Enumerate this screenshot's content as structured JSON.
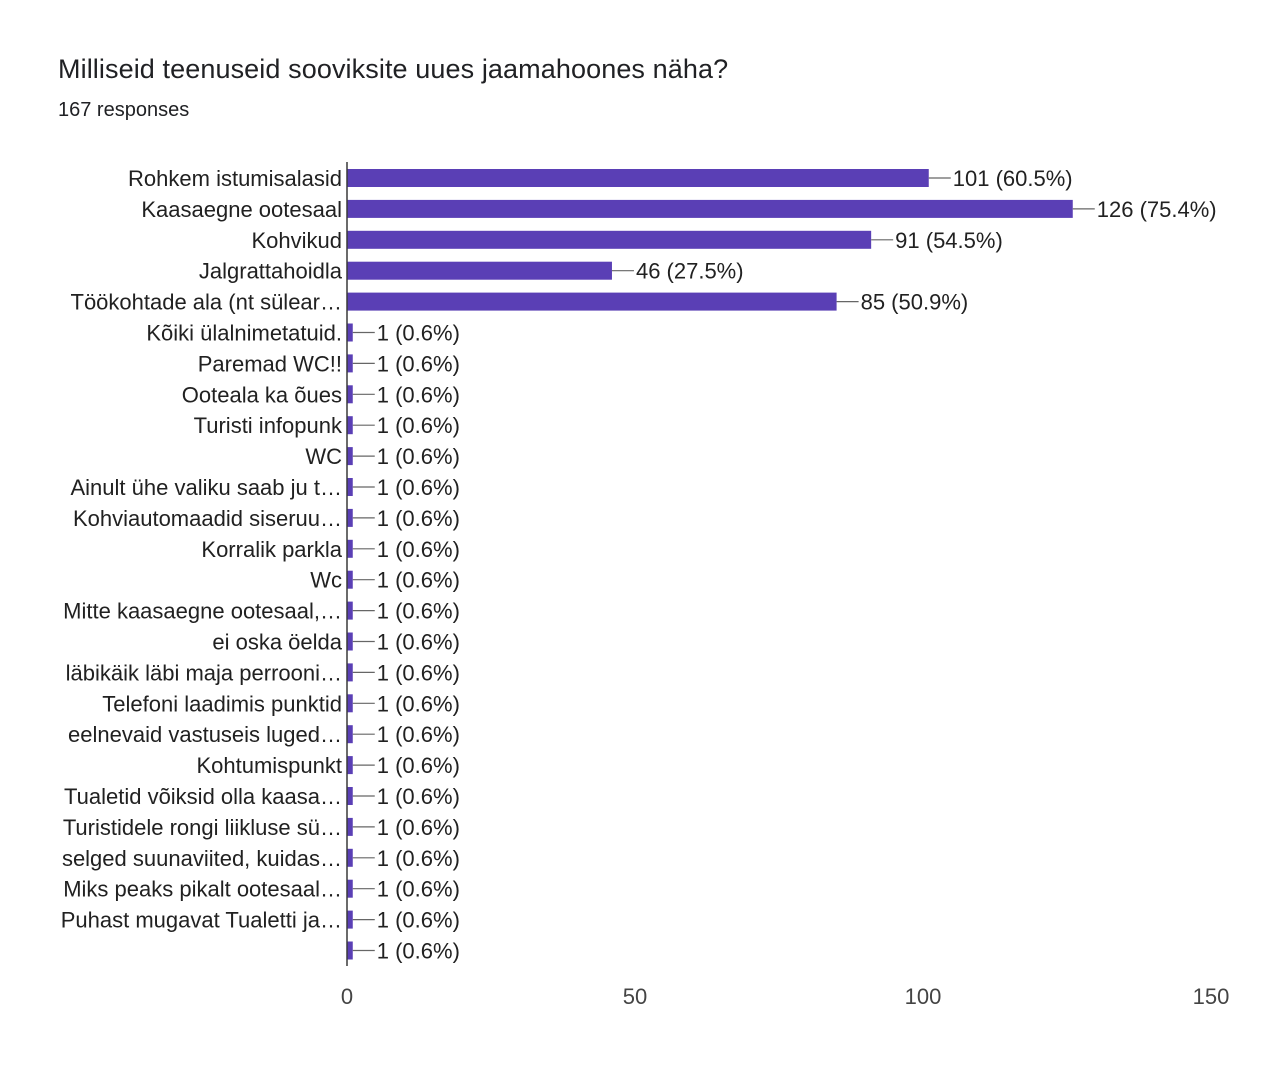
{
  "header": {
    "title": "Milliseid teenuseid sooviksite uues jaamahoones näha?",
    "responses": "167 responses"
  },
  "colors": {
    "bar": "#5a3fb5",
    "axis": "#3a3a3a",
    "leader": "#666666"
  },
  "chart_data": {
    "type": "bar",
    "orientation": "horizontal",
    "title": "Milliseid teenuseid sooviksite uues jaamahoones näha?",
    "subtitle": "167 responses",
    "categories": [
      "Rohkem istumisalasid",
      "Kaasaegne ootesaal",
      "Kohvikud",
      "Jalgrattahoidla",
      "Töökohtade ala (nt sülear…",
      "Kõiki ülalnimetatuid.",
      "Paremad WC!!",
      "Ooteala ka õues",
      "Turisti infopunk",
      "WC",
      "Ainult ühe valiku saab ju t…",
      "Kohviautomaadid siseruu…",
      "Korralik parkla",
      "Wc",
      "Mitte kaasaegne ootesaal,…",
      "ei oska öelda",
      "läbikäik läbi maja perrooni…",
      "Telefoni laadimis punktid",
      "eelnevaid vastuseis luged…",
      "Kohtumispunkt",
      "Tualetid võiksid olla kaasa…",
      "Turistidele rongi liikluse sü…",
      "selged suunaviited, kuidas…",
      "Miks peaks pikalt ootesaal…",
      "Puhast mugavat Tualetti ja…",
      ""
    ],
    "values": [
      101,
      126,
      91,
      46,
      85,
      1,
      1,
      1,
      1,
      1,
      1,
      1,
      1,
      1,
      1,
      1,
      1,
      1,
      1,
      1,
      1,
      1,
      1,
      1,
      1,
      1
    ],
    "value_labels": [
      "101 (60.5%)",
      "126 (75.4%)",
      "91 (54.5%)",
      "46 (27.5%)",
      "85 (50.9%)",
      "1 (0.6%)",
      "1 (0.6%)",
      "1 (0.6%)",
      "1 (0.6%)",
      "1 (0.6%)",
      "1 (0.6%)",
      "1 (0.6%)",
      "1 (0.6%)",
      "1 (0.6%)",
      "1 (0.6%)",
      "1 (0.6%)",
      "1 (0.6%)",
      "1 (0.6%)",
      "1 (0.6%)",
      "1 (0.6%)",
      "1 (0.6%)",
      "1 (0.6%)",
      "1 (0.6%)",
      "1 (0.6%)",
      "1 (0.6%)",
      "1 (0.6%)"
    ],
    "xlim": [
      0,
      150
    ],
    "xticks": [
      0,
      50,
      100,
      150
    ],
    "xtick_labels": [
      "0",
      "50",
      "100",
      "150"
    ],
    "xlabel": "",
    "ylabel": "",
    "grid": false,
    "legend": "none"
  }
}
